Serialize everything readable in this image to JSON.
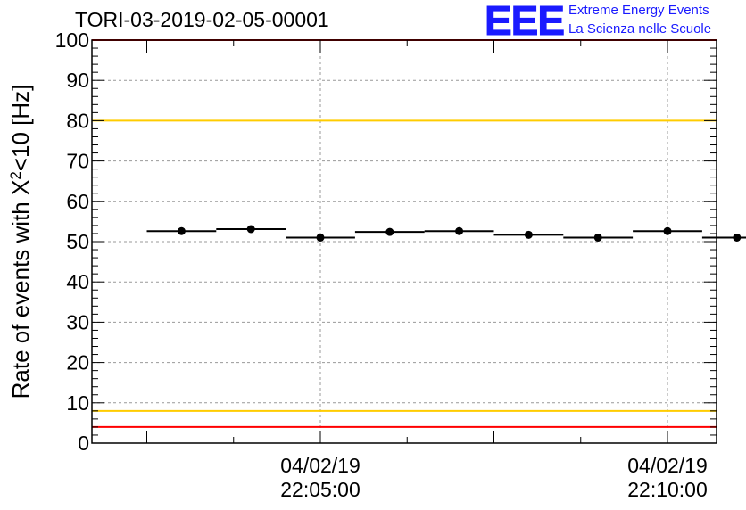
{
  "logo": {
    "letters": "EEE",
    "line1": "Extreme Energy Events",
    "line2": "La Scienza nelle Scuole"
  },
  "colors": {
    "logo_blue": "#1a1aff",
    "red_line": "#ff0000",
    "yellow_line": "#ffcc00",
    "data": "#000000",
    "grid": "#999999"
  },
  "chart_data": {
    "type": "scatter",
    "title": "TORI-03-2019-02-05-00001",
    "ylabel_main": "Rate of events with X",
    "ylabel_sup": "2",
    "ylabel_tail": "<10 [Hz]",
    "ylim": [
      0,
      100
    ],
    "yticks": [
      "0",
      "10",
      "20",
      "30",
      "40",
      "50",
      "60",
      "70",
      "80",
      "90",
      "100"
    ],
    "grid": true,
    "xtick_labels": [
      {
        "date": "04/02/19",
        "time": "22:05:00"
      },
      {
        "date": "04/02/19",
        "time": "22:10:00"
      }
    ],
    "reference_lines": [
      {
        "color": "red",
        "y": 100
      },
      {
        "color": "yellow",
        "y": 80
      },
      {
        "color": "yellow",
        "y": 8
      },
      {
        "color": "red",
        "y": 4
      }
    ],
    "points": [
      {
        "x": "22:03:00",
        "y": 52.6
      },
      {
        "x": "22:04:00",
        "y": 53.1
      },
      {
        "x": "22:05:00",
        "y": 51.0
      },
      {
        "x": "22:06:00",
        "y": 52.4
      },
      {
        "x": "22:07:00",
        "y": 52.6
      },
      {
        "x": "22:08:00",
        "y": 51.7
      },
      {
        "x": "22:09:00",
        "y": 51.0
      },
      {
        "x": "22:10:00",
        "y": 52.6
      },
      {
        "x": "22:11:00",
        "y": 51.0
      }
    ]
  }
}
